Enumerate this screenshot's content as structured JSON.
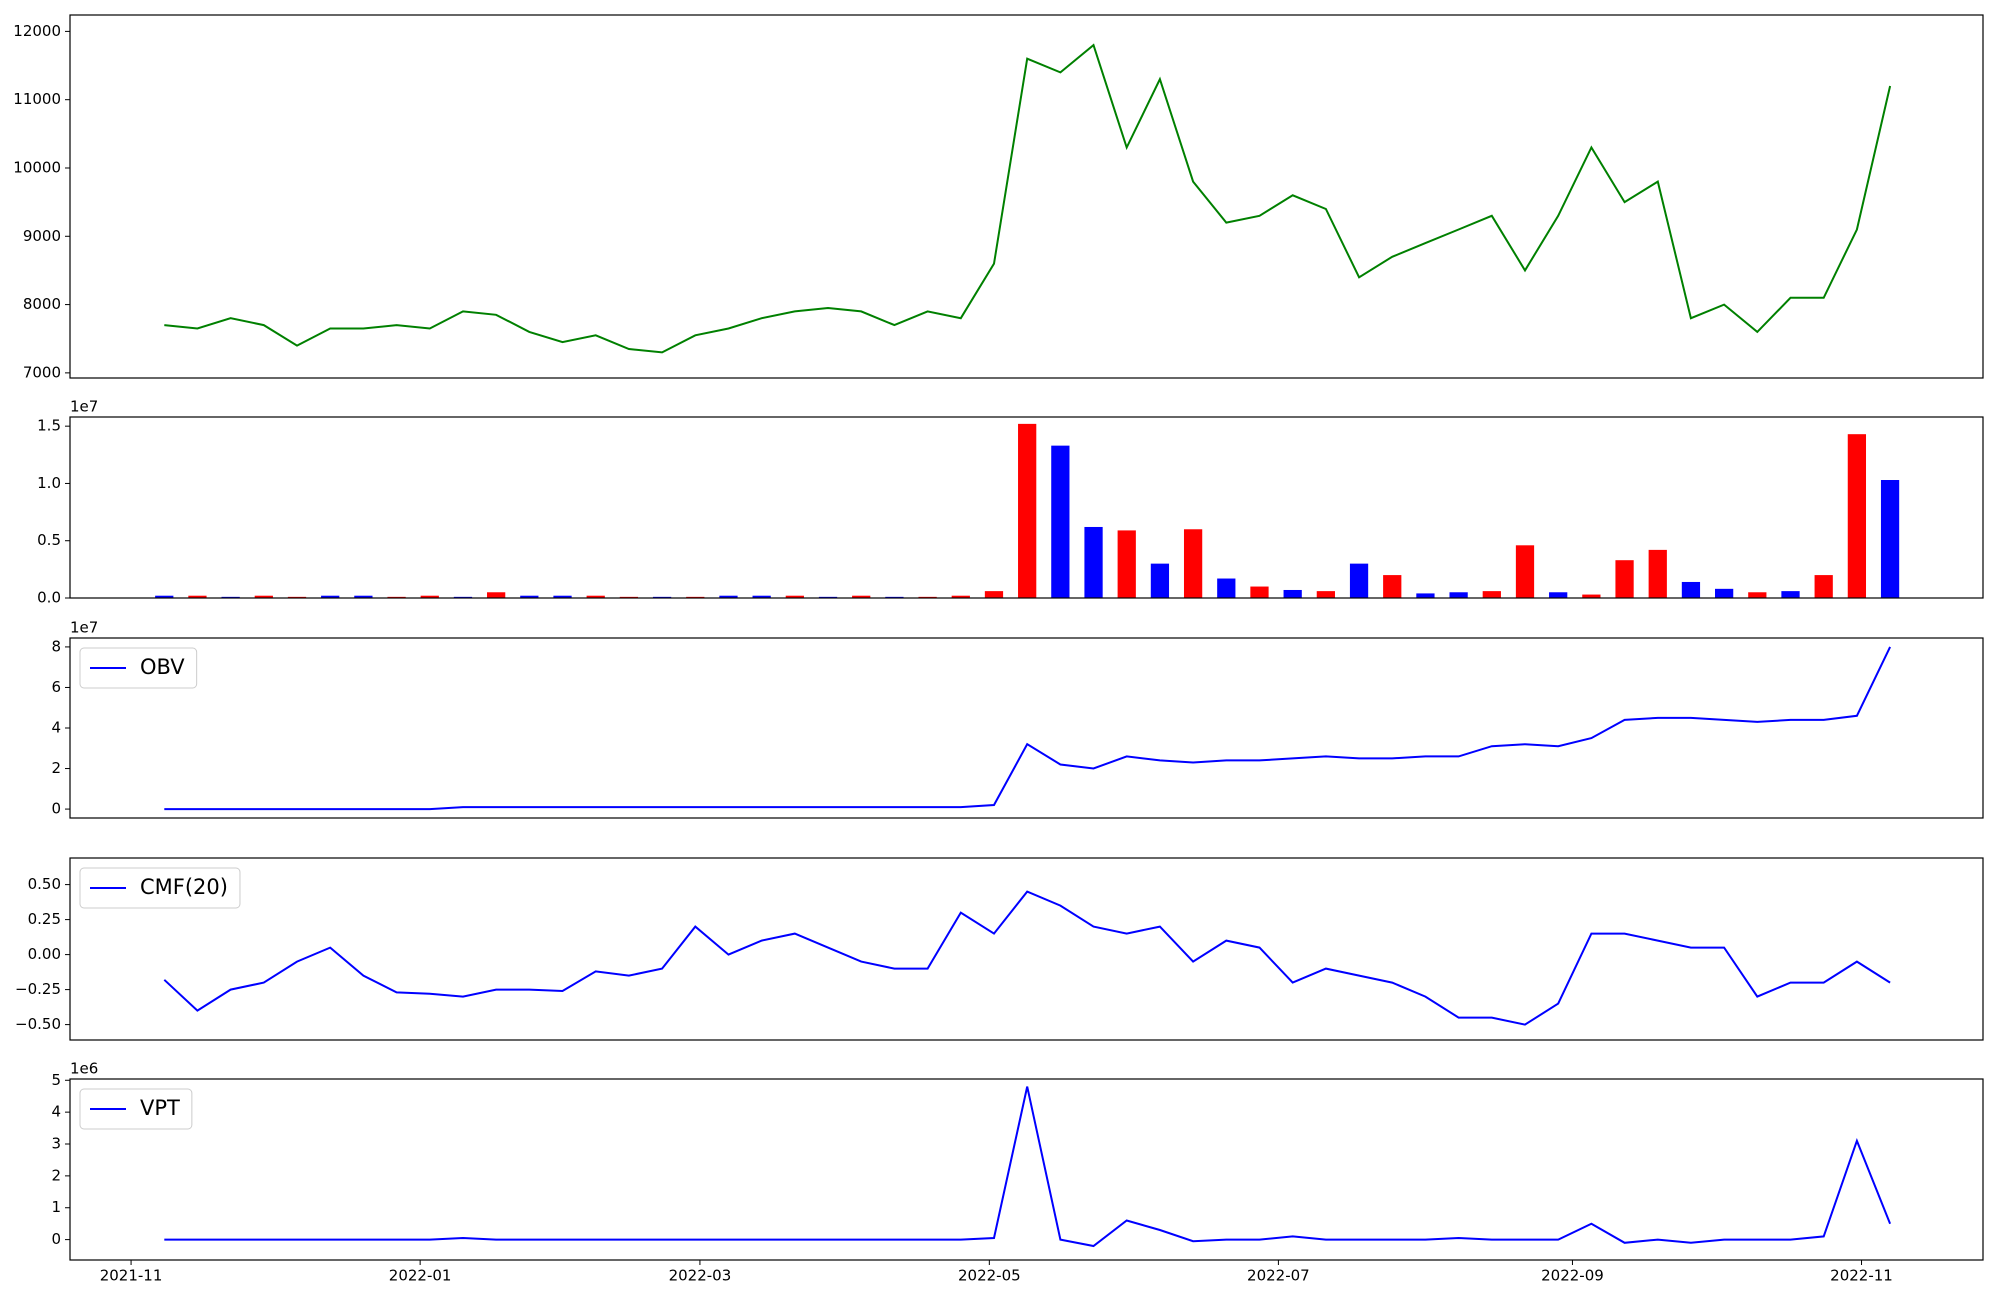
{
  "chart_data": [
    {
      "type": "line",
      "x": [
        1,
        2,
        3,
        4,
        5,
        6,
        7,
        8,
        9,
        10,
        11,
        12,
        13,
        14,
        15,
        16,
        17,
        18,
        19,
        20,
        21,
        22,
        23,
        24,
        25,
        26,
        27,
        28,
        29,
        30,
        31,
        32,
        33,
        34,
        35,
        36,
        37,
        38,
        39,
        40,
        41,
        42,
        43,
        44,
        45,
        46,
        47,
        48,
        49,
        50,
        51,
        52,
        53
      ],
      "series": [
        {
          "color": "green",
          "values": [
            7700,
            7650,
            7800,
            7700,
            7400,
            7650,
            7650,
            7700,
            7650,
            7900,
            7850,
            7600,
            7450,
            7550,
            7350,
            7300,
            7550,
            7650,
            7800,
            7900,
            7950,
            7900,
            7700,
            7900,
            7800,
            8600,
            11600,
            11400,
            11800,
            10300,
            11300,
            9800,
            9200,
            9300,
            9600,
            9400,
            8400,
            8700,
            8900,
            9100,
            9300,
            8500,
            9300,
            10300,
            9500,
            9800,
            7800,
            8000,
            7600,
            8100,
            8100,
            9100,
            11200
          ]
        }
      ],
      "xlim": [
        -1.84,
        55.8
      ],
      "ylim": [
        6925,
        12240
      ],
      "yticks": [
        7000,
        8000,
        9000,
        10000,
        11000,
        12000
      ]
    },
    {
      "type": "bar",
      "x": [
        1,
        2,
        3,
        4,
        5,
        6,
        7,
        8,
        9,
        10,
        11,
        12,
        13,
        14,
        15,
        16,
        17,
        18,
        19,
        20,
        21,
        22,
        23,
        24,
        25,
        26,
        27,
        28,
        29,
        30,
        31,
        32,
        33,
        34,
        35,
        36,
        37,
        38,
        39,
        40,
        41,
        42,
        43,
        44,
        45,
        46,
        47,
        48,
        49,
        50,
        51,
        52,
        53
      ],
      "values": [
        0.02,
        0.02,
        0.01,
        0.02,
        0.01,
        0.02,
        0.02,
        0.01,
        0.02,
        0.01,
        0.05,
        0.02,
        0.02,
        0.02,
        0.01,
        0.01,
        0.01,
        0.02,
        0.02,
        0.02,
        0.01,
        0.02,
        0.01,
        0.01,
        0.02,
        0.06,
        1.52,
        1.33,
        0.62,
        0.59,
        0.3,
        0.6,
        0.17,
        0.1,
        0.07,
        0.06,
        0.3,
        0.2,
        0.04,
        0.05,
        0.06,
        0.46,
        0.05,
        0.03,
        0.33,
        0.42,
        0.14,
        0.08,
        0.05,
        0.06,
        0.2,
        1.43,
        1.03
      ],
      "colors": [
        "blue",
        "red",
        "blue",
        "red",
        "red",
        "blue",
        "blue",
        "red",
        "red",
        "blue",
        "red",
        "blue",
        "blue",
        "red",
        "red",
        "blue",
        "red",
        "blue",
        "blue",
        "red",
        "blue",
        "red",
        "blue",
        "red",
        "red",
        "red",
        "red",
        "blue",
        "blue",
        "red",
        "blue",
        "red",
        "blue",
        "red",
        "blue",
        "red",
        "blue",
        "red",
        "blue",
        "blue",
        "red",
        "red",
        "blue",
        "red",
        "red",
        "red",
        "blue",
        "blue",
        "red",
        "blue",
        "red",
        "red",
        "blue"
      ],
      "xlim": [
        -1.84,
        55.8
      ],
      "ylim": [
        0,
        1.58
      ],
      "yticks": [
        {
          "value": 0,
          "label": "0.0"
        },
        0.5,
        {
          "value": 1,
          "label": "1.0"
        },
        1.5
      ],
      "offset_label": "1e7"
    },
    {
      "type": "line",
      "x": [
        1,
        2,
        3,
        4,
        5,
        6,
        7,
        8,
        9,
        10,
        11,
        12,
        13,
        14,
        15,
        16,
        17,
        18,
        19,
        20,
        21,
        22,
        23,
        24,
        25,
        26,
        27,
        28,
        29,
        30,
        31,
        32,
        33,
        34,
        35,
        36,
        37,
        38,
        39,
        40,
        41,
        42,
        43,
        44,
        45,
        46,
        47,
        48,
        49,
        50,
        51,
        52,
        53
      ],
      "series": [
        {
          "name": "OBV",
          "color": "blue",
          "values": [
            0,
            0,
            0,
            0,
            0,
            0,
            0,
            0,
            0,
            0.1,
            0.1,
            0.1,
            0.1,
            0.1,
            0.1,
            0.1,
            0.1,
            0.1,
            0.1,
            0.1,
            0.1,
            0.1,
            0.1,
            0.1,
            0.1,
            0.2,
            3.2,
            2.2,
            2.0,
            2.6,
            2.4,
            2.3,
            2.4,
            2.4,
            2.5,
            2.6,
            2.5,
            2.5,
            2.6,
            2.6,
            3.1,
            3.2,
            3.1,
            3.5,
            4.4,
            4.5,
            4.5,
            4.4,
            4.3,
            4.4,
            4.4,
            4.6,
            8.0
          ]
        }
      ],
      "xlim": [
        -1.84,
        55.8
      ],
      "ylim": [
        -0.44,
        8.44
      ],
      "yticks": [
        0,
        2,
        4,
        6,
        8
      ],
      "offset_label": "1e7",
      "legend": "upper left"
    },
    {
      "type": "line",
      "x": [
        1,
        2,
        3,
        4,
        5,
        6,
        7,
        8,
        9,
        10,
        11,
        12,
        13,
        14,
        15,
        16,
        17,
        18,
        19,
        20,
        21,
        22,
        23,
        24,
        25,
        26,
        27,
        28,
        29,
        30,
        31,
        32,
        33,
        34,
        35,
        36,
        37,
        38,
        39,
        40,
        41,
        42,
        43,
        44,
        45,
        46,
        47,
        48,
        49,
        50,
        51,
        52,
        53
      ],
      "series": [
        {
          "name": "CMF(20)",
          "color": "blue",
          "values": [
            -0.18,
            -0.4,
            -0.25,
            -0.2,
            -0.05,
            0.05,
            -0.15,
            -0.27,
            -0.28,
            -0.3,
            -0.25,
            -0.25,
            -0.26,
            -0.12,
            -0.15,
            -0.1,
            0.2,
            0,
            0.1,
            0.15,
            0.05,
            -0.05,
            -0.1,
            -0.1,
            0.3,
            0.15,
            0.45,
            0.35,
            0.2,
            0.15,
            0.2,
            -0.05,
            0.1,
            0.05,
            -0.2,
            -0.1,
            -0.15,
            -0.2,
            -0.3,
            -0.45,
            -0.45,
            -0.5,
            -0.35,
            0.15,
            0.15,
            0.1,
            0.05,
            0.05,
            -0.3,
            -0.2,
            -0.2,
            -0.05,
            -0.2
          ]
        }
      ],
      "xlim": [
        -1.84,
        55.8
      ],
      "ylim": [
        -0.61,
        0.69
      ],
      "yticks": [
        {
          "value": -0.5,
          "label": "−0.50"
        },
        {
          "value": -0.25,
          "label": "−0.25"
        },
        {
          "value": 0,
          "label": "0.00"
        },
        0.25,
        {
          "value": 0.5,
          "label": "0.50"
        }
      ],
      "legend": "upper left"
    },
    {
      "type": "line",
      "x": [
        1,
        2,
        3,
        4,
        5,
        6,
        7,
        8,
        9,
        10,
        11,
        12,
        13,
        14,
        15,
        16,
        17,
        18,
        19,
        20,
        21,
        22,
        23,
        24,
        25,
        26,
        27,
        28,
        29,
        30,
        31,
        32,
        33,
        34,
        35,
        36,
        37,
        38,
        39,
        40,
        41,
        42,
        43,
        44,
        45,
        46,
        47,
        48,
        49,
        50,
        51,
        52,
        53
      ],
      "series": [
        {
          "name": "VPT",
          "color": "blue",
          "values": [
            0,
            0,
            0,
            0,
            0,
            0,
            0,
            0,
            0,
            0.05,
            0,
            0,
            0,
            0,
            0,
            0,
            0,
            0,
            0,
            0,
            0,
            0,
            0,
            0,
            0,
            0.05,
            4.8,
            0,
            -0.2,
            0.6,
            0.3,
            -0.05,
            0,
            0,
            0.1,
            0,
            0,
            0,
            0,
            0.05,
            0,
            0,
            0,
            0.5,
            -0.1,
            0,
            -0.1,
            0,
            0,
            0,
            0.1,
            3.1,
            0.5
          ]
        }
      ],
      "xlim": [
        -1.84,
        55.8
      ],
      "ylim": [
        -0.64,
        5.04
      ],
      "yticks": [
        0,
        1,
        2,
        3,
        4,
        5
      ],
      "offset_label": "1e6",
      "legend": "upper left",
      "xticks": [
        {
          "value": 0,
          "label": "2021-11"
        },
        {
          "value": 8.71,
          "label": "2022-01"
        },
        {
          "value": 17.14,
          "label": "2022-03"
        },
        {
          "value": 25.86,
          "label": "2022-05"
        },
        {
          "value": 34.57,
          "label": "2022-07"
        },
        {
          "value": 43.43,
          "label": "2022-09"
        },
        {
          "value": 52.14,
          "label": "2022-11"
        }
      ]
    }
  ]
}
